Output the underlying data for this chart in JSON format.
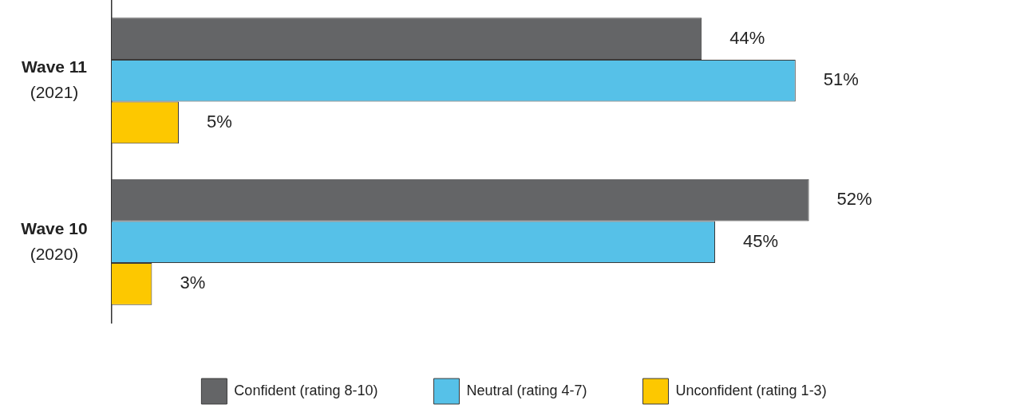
{
  "chart_data": {
    "type": "bar",
    "orientation": "horizontal",
    "categories": [
      "Wave 11\n(2021)",
      "Wave 10\n(2020)"
    ],
    "series": [
      {
        "name": "Confident (rating 8-10)",
        "color": "#646567",
        "values": [
          44,
          52
        ],
        "value_labels": [
          "44%",
          "52%"
        ]
      },
      {
        "name": "Neutral (rating 4-7)",
        "color": "#56c1e8",
        "values": [
          51,
          45
        ],
        "value_labels": [
          "51%",
          "45%"
        ]
      },
      {
        "name": "Unconfident (rating 1-3)",
        "color": "#fdc800",
        "values": [
          5,
          3
        ],
        "value_labels": [
          "5%",
          "3%"
        ]
      }
    ],
    "legend": "bottom",
    "grid": false
  }
}
